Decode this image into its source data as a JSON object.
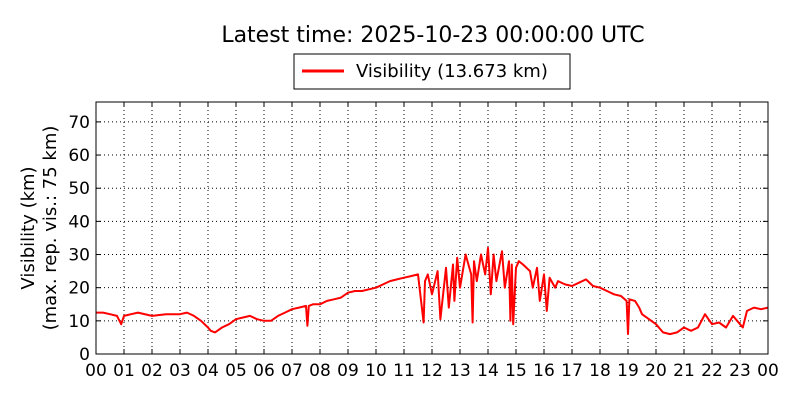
{
  "chart_data": {
    "type": "line",
    "title": "Latest time: 2025-10-23 00:00:00 UTC",
    "ylabel": "Visibility (km)",
    "ylabel_sub": "(max. rep. vis.: 75 km)",
    "ylim": [
      0,
      76
    ],
    "xlim": [
      0,
      24
    ],
    "yticks": [
      0,
      10,
      20,
      30,
      40,
      50,
      60,
      70
    ],
    "ytick_labels": [
      "0",
      "10",
      "20",
      "30",
      "40",
      "50",
      "60",
      "70"
    ],
    "xticks": [
      0,
      1,
      2,
      3,
      4,
      5,
      6,
      7,
      8,
      9,
      10,
      11,
      12,
      13,
      14,
      15,
      16,
      17,
      18,
      19,
      20,
      21,
      22,
      23,
      24
    ],
    "xtick_labels": [
      "00",
      "01",
      "02",
      "03",
      "04",
      "05",
      "06",
      "07",
      "08",
      "09",
      "10",
      "11",
      "12",
      "13",
      "14",
      "15",
      "16",
      "17",
      "18",
      "19",
      "20",
      "21",
      "22",
      "23",
      "00"
    ],
    "grid": true,
    "legend_position": "top-center",
    "series": [
      {
        "name": "Visibility (13.673 km)",
        "color": "#ff0000",
        "x": [
          0.0,
          0.25,
          0.5,
          0.75,
          0.9,
          1.0,
          1.25,
          1.5,
          2.0,
          2.5,
          3.0,
          3.25,
          3.5,
          3.75,
          4.0,
          4.1,
          4.25,
          4.5,
          4.75,
          5.0,
          5.25,
          5.5,
          5.75,
          6.0,
          6.25,
          6.5,
          6.75,
          7.0,
          7.25,
          7.5,
          7.55,
          7.6,
          7.75,
          8.0,
          8.25,
          8.5,
          8.75,
          9.0,
          9.25,
          9.5,
          9.75,
          10.0,
          10.25,
          10.5,
          10.75,
          11.0,
          11.25,
          11.5,
          11.7,
          11.75,
          11.85,
          12.0,
          12.2,
          12.3,
          12.5,
          12.6,
          12.75,
          12.8,
          12.9,
          13.0,
          13.2,
          13.4,
          13.45,
          13.5,
          13.6,
          13.75,
          13.9,
          14.0,
          14.1,
          14.2,
          14.3,
          14.5,
          14.6,
          14.75,
          14.8,
          14.85,
          14.9,
          15.0,
          15.1,
          15.25,
          15.5,
          15.6,
          15.75,
          15.85,
          16.0,
          16.1,
          16.2,
          16.4,
          16.5,
          16.75,
          17.0,
          17.25,
          17.5,
          17.75,
          18.0,
          18.25,
          18.5,
          18.75,
          18.95,
          19.0,
          19.05,
          19.25,
          19.4,
          19.5,
          19.75,
          20.0,
          20.25,
          20.5,
          20.75,
          21.0,
          21.25,
          21.5,
          21.75,
          22.0,
          22.25,
          22.5,
          22.75,
          23.0,
          23.1,
          23.25,
          23.5,
          23.75,
          24.0
        ],
        "values": [
          12.5,
          12.5,
          12.0,
          11.5,
          9.0,
          11.5,
          12.0,
          12.5,
          11.5,
          12.0,
          12.0,
          12.5,
          11.5,
          10.0,
          8.0,
          7.0,
          6.5,
          8.0,
          9.0,
          10.5,
          11.0,
          11.5,
          10.5,
          10.0,
          10.0,
          11.5,
          12.5,
          13.5,
          14.0,
          14.5,
          8.5,
          14.5,
          15.0,
          15.0,
          16.0,
          16.5,
          17.0,
          18.5,
          19.0,
          19.0,
          19.5,
          20.0,
          21.0,
          22.0,
          22.5,
          23.0,
          23.5,
          24.0,
          9.5,
          22.0,
          24.0,
          18.0,
          25.0,
          10.5,
          26.0,
          14.0,
          27.0,
          16.0,
          29.0,
          20.0,
          30.0,
          24.0,
          9.5,
          28.0,
          22.0,
          30.0,
          24.0,
          32.0,
          18.0,
          30.0,
          22.0,
          31.0,
          20.0,
          28.0,
          10.0,
          27.0,
          9.0,
          26.0,
          28.0,
          27.0,
          25.0,
          20.0,
          26.0,
          16.0,
          24.0,
          13.0,
          23.0,
          20.0,
          22.0,
          21.0,
          20.5,
          21.5,
          22.5,
          20.5,
          20.0,
          19.0,
          18.0,
          17.5,
          16.0,
          6.0,
          16.5,
          16.0,
          14.0,
          12.0,
          10.5,
          9.0,
          6.5,
          6.0,
          6.5,
          8.0,
          7.0,
          8.0,
          12.0,
          9.0,
          9.5,
          8.0,
          11.5,
          9.0,
          8.0,
          13.0,
          14.0,
          13.5,
          14.0
        ]
      }
    ]
  }
}
